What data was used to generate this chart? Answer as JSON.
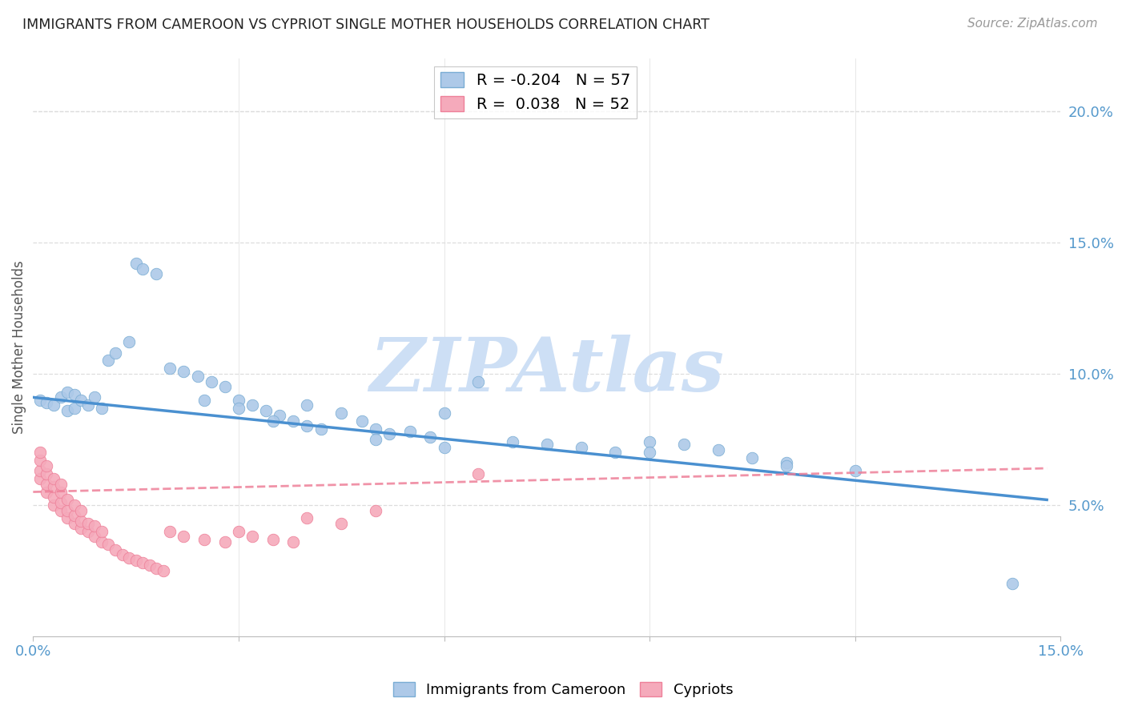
{
  "title": "IMMIGRANTS FROM CAMEROON VS CYPRIOT SINGLE MOTHER HOUSEHOLDS CORRELATION CHART",
  "source": "Source: ZipAtlas.com",
  "ylabel": "Single Mother Households",
  "legend_label1": "Immigrants from Cameroon",
  "legend_label2": "Cypriots",
  "R1": -0.204,
  "N1": 57,
  "R2": 0.038,
  "N2": 52,
  "color1": "#adc9e8",
  "color1_edge": "#7aadd4",
  "color2": "#f5aabb",
  "color2_edge": "#ee8099",
  "line1_color": "#4a90d0",
  "line2_color": "#ee8099",
  "xlim": [
    0.0,
    0.15
  ],
  "ylim": [
    0.0,
    0.22
  ],
  "xticks": [
    0.0,
    0.03,
    0.06,
    0.09,
    0.12,
    0.15
  ],
  "xtick_labels": [
    "0.0%",
    "",
    "",
    "",
    "",
    "15.0%"
  ],
  "yticks_right": [
    0.05,
    0.1,
    0.15,
    0.2
  ],
  "ytick_labels_right": [
    "5.0%",
    "10.0%",
    "15.0%",
    "20.0%"
  ],
  "blue_x": [
    0.001,
    0.002,
    0.003,
    0.004,
    0.005,
    0.005,
    0.006,
    0.006,
    0.007,
    0.008,
    0.009,
    0.01,
    0.011,
    0.012,
    0.014,
    0.015,
    0.016,
    0.018,
    0.02,
    0.022,
    0.024,
    0.026,
    0.028,
    0.03,
    0.032,
    0.034,
    0.036,
    0.038,
    0.04,
    0.042,
    0.045,
    0.048,
    0.05,
    0.052,
    0.055,
    0.058,
    0.06,
    0.065,
    0.07,
    0.075,
    0.08,
    0.085,
    0.09,
    0.095,
    0.1,
    0.105,
    0.11,
    0.12,
    0.025,
    0.03,
    0.035,
    0.04,
    0.05,
    0.06,
    0.09,
    0.11,
    0.143
  ],
  "blue_y": [
    0.09,
    0.089,
    0.088,
    0.091,
    0.093,
    0.086,
    0.092,
    0.087,
    0.09,
    0.088,
    0.091,
    0.087,
    0.105,
    0.108,
    0.112,
    0.142,
    0.14,
    0.138,
    0.102,
    0.101,
    0.099,
    0.097,
    0.095,
    0.09,
    0.088,
    0.086,
    0.084,
    0.082,
    0.088,
    0.079,
    0.085,
    0.082,
    0.079,
    0.077,
    0.078,
    0.076,
    0.085,
    0.097,
    0.074,
    0.073,
    0.072,
    0.07,
    0.074,
    0.073,
    0.071,
    0.068,
    0.066,
    0.063,
    0.09,
    0.087,
    0.082,
    0.08,
    0.075,
    0.072,
    0.07,
    0.065,
    0.02
  ],
  "pink_x": [
    0.001,
    0.001,
    0.001,
    0.001,
    0.002,
    0.002,
    0.002,
    0.002,
    0.003,
    0.003,
    0.003,
    0.003,
    0.004,
    0.004,
    0.004,
    0.004,
    0.005,
    0.005,
    0.005,
    0.006,
    0.006,
    0.006,
    0.007,
    0.007,
    0.007,
    0.008,
    0.008,
    0.009,
    0.009,
    0.01,
    0.01,
    0.011,
    0.012,
    0.013,
    0.014,
    0.015,
    0.016,
    0.017,
    0.018,
    0.019,
    0.02,
    0.022,
    0.025,
    0.028,
    0.03,
    0.032,
    0.035,
    0.038,
    0.04,
    0.045,
    0.05,
    0.065
  ],
  "pink_y": [
    0.06,
    0.063,
    0.067,
    0.07,
    0.055,
    0.058,
    0.062,
    0.065,
    0.05,
    0.053,
    0.057,
    0.06,
    0.048,
    0.051,
    0.055,
    0.058,
    0.045,
    0.048,
    0.052,
    0.043,
    0.046,
    0.05,
    0.041,
    0.044,
    0.048,
    0.04,
    0.043,
    0.038,
    0.042,
    0.036,
    0.04,
    0.035,
    0.033,
    0.031,
    0.03,
    0.029,
    0.028,
    0.027,
    0.026,
    0.025,
    0.04,
    0.038,
    0.037,
    0.036,
    0.04,
    0.038,
    0.037,
    0.036,
    0.045,
    0.043,
    0.048,
    0.062
  ],
  "blue_line_x0": 0.0,
  "blue_line_y0": 0.091,
  "blue_line_x1": 0.148,
  "blue_line_y1": 0.052,
  "pink_line_x0": 0.0,
  "pink_line_y0": 0.055,
  "pink_line_x1": 0.148,
  "pink_line_y1": 0.064,
  "watermark": "ZIPAtlas",
  "watermark_color": "#cddff5",
  "bg_color": "#ffffff",
  "grid_color": "#dddddd"
}
